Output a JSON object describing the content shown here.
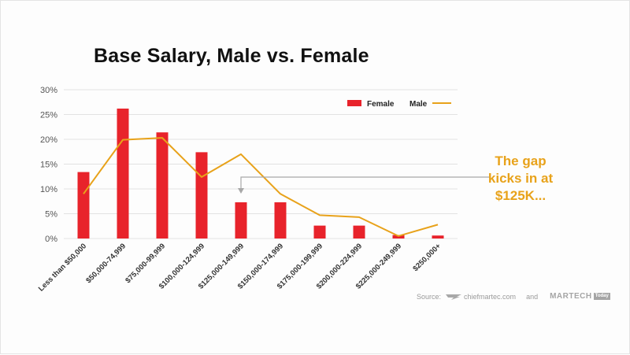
{
  "chart_data": {
    "type": "bar",
    "title": "Base Salary, Male vs. Female",
    "categories": [
      "Less than $50,000",
      "$50,000-74,999",
      "$75,000-99,999",
      "$100,000-124,999",
      "$125,000-149,999",
      "$150,000-174,999",
      "$175,000-199,999",
      "$200,000-224,999",
      "$225,000-249,999",
      "$250,000+"
    ],
    "series": [
      {
        "name": "Female",
        "kind": "bar",
        "color": "#e8232b",
        "values": [
          13.4,
          26.2,
          21.4,
          17.4,
          7.3,
          7.3,
          2.6,
          2.6,
          0.7,
          0.6
        ]
      },
      {
        "name": "Male",
        "kind": "line",
        "color": "#e8a21a",
        "values": [
          9.0,
          19.9,
          20.3,
          12.4,
          17.0,
          9.0,
          4.7,
          4.3,
          0.5,
          2.8
        ]
      }
    ],
    "y_ticks": [
      "0%",
      "5%",
      "10%",
      "15%",
      "20%",
      "25%",
      "30%"
    ],
    "ylim": [
      0,
      30
    ],
    "xlabel": "",
    "ylabel": "",
    "grid": true,
    "legend_position": "top-right"
  },
  "annotation": {
    "lines": [
      "The gap",
      "kicks in at",
      "$125K..."
    ],
    "color": "#e8a21a",
    "target_category": "$125,000-149,999"
  },
  "source": {
    "label": "Source:",
    "site": "chiefmartec.com",
    "connector": "and",
    "brand": "MARTECH",
    "brand_badge": "Today"
  }
}
